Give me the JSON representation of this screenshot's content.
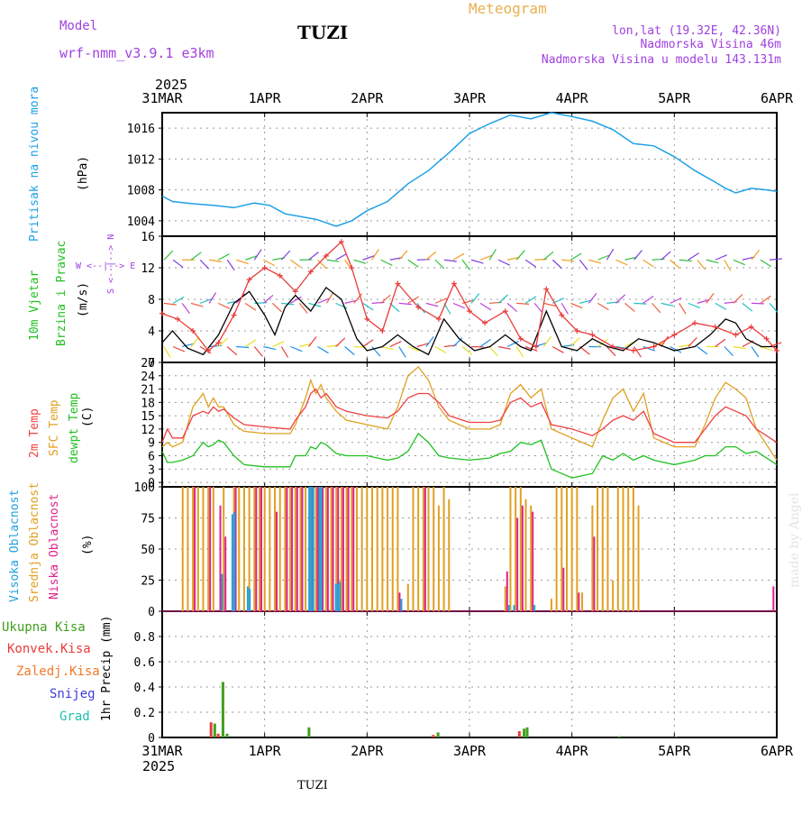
{
  "header": {
    "model_label": "Model",
    "model_name": "wrf-nmm_v3.9.1 e3km",
    "station": "TUZI",
    "meteogram_label": "Meteogram",
    "lonlat": "lon,lat (19.32E, 42.36N)",
    "elevation": "Nadmorska Visina 46m",
    "model_elevation": "Nadmorska Visina u modelu 143.131m",
    "year": "2025",
    "footer_station": "TUZI",
    "credit": "made by Angel"
  },
  "colors": {
    "pressure": "#1ea0e6",
    "wind_speed": "#e83c3c",
    "wind_gust": "#000000",
    "temp2m": "#f04040",
    "sfc_temp": "#e0a020",
    "dewpt": "#20c020",
    "cloud_high": "#20a0e0",
    "cloud_mid": "#e0a020",
    "cloud_low": "#e0208c",
    "precip_total": "#40a020",
    "precip_conv": "#e83c3c",
    "precip_frozen": "#f07828",
    "snow": "#3c3cdc",
    "graupel": "#20c0b0",
    "label_purple": "#a040e0",
    "label_gold": "#e8b050"
  },
  "chart_data": [
    {
      "type": "line",
      "title": "Pritisak na nivou mora",
      "ylabel": "(hPa)",
      "x_ticks": [
        "31MAR",
        "1APR",
        "2APR",
        "3APR",
        "4APR",
        "5APR",
        "6APR"
      ],
      "x_range_days": [
        0,
        6
      ],
      "ylim": [
        1002,
        1018
      ],
      "y_ticks": [
        1004,
        1008,
        1012,
        1016
      ],
      "series": [
        {
          "name": "Pressure",
          "x": [
            0,
            0.1,
            0.3,
            0.5,
            0.7,
            0.9,
            1.05,
            1.2,
            1.5,
            1.7,
            1.85,
            2.0,
            2.2,
            2.4,
            2.6,
            2.8,
            3.0,
            3.2,
            3.4,
            3.6,
            3.8,
            4.0,
            4.2,
            4.4,
            4.6,
            4.8,
            5.0,
            5.2,
            5.4,
            5.5,
            5.6,
            5.75,
            5.9,
            6.0
          ],
          "values": [
            1007.2,
            1006.5,
            1006.2,
            1006.0,
            1005.7,
            1006.3,
            1006.0,
            1004.9,
            1004.2,
            1003.3,
            1004.0,
            1005.3,
            1006.5,
            1008.8,
            1010.5,
            1012.8,
            1015.3,
            1016.6,
            1017.7,
            1017.2,
            1018.0,
            1017.5,
            1016.9,
            1015.8,
            1014.0,
            1013.7,
            1012.3,
            1010.5,
            1009.0,
            1008.2,
            1007.6,
            1008.2,
            1008.0,
            1007.8
          ]
        }
      ]
    },
    {
      "type": "line",
      "title": "10m Vjetar Brzina i Pravac",
      "ylabel": "(m/s)",
      "direction_legend": [
        "N",
        "E",
        "S",
        "W"
      ],
      "ylim": [
        0,
        16
      ],
      "y_ticks": [
        0,
        4,
        8,
        12,
        16
      ],
      "wind_rows": [
        2,
        7.5,
        13
      ],
      "series": [
        {
          "name": "Wind speed",
          "x": [
            0,
            0.15,
            0.3,
            0.45,
            0.55,
            0.7,
            0.85,
            1.0,
            1.15,
            1.3,
            1.45,
            1.6,
            1.75,
            1.85,
            2.0,
            2.15,
            2.3,
            2.5,
            2.7,
            2.85,
            3.0,
            3.15,
            3.35,
            3.5,
            3.65,
            3.75,
            3.9,
            4.05,
            4.2,
            4.4,
            4.6,
            4.8,
            5.0,
            5.2,
            5.4,
            5.6,
            5.75,
            5.9,
            6.0
          ],
          "values": [
            6.2,
            5.5,
            4.0,
            1.5,
            2.5,
            6.0,
            10.5,
            12.0,
            11.0,
            9.0,
            11.5,
            13.5,
            15.3,
            12.0,
            5.5,
            4.0,
            10.0,
            7.0,
            5.5,
            10.0,
            6.5,
            5.0,
            6.5,
            3.0,
            2.0,
            9.3,
            6.0,
            4.0,
            3.5,
            2.0,
            1.5,
            2.0,
            3.5,
            5.0,
            4.5,
            3.5,
            4.5,
            3.0,
            1.5
          ]
        },
        {
          "name": "Wind gust",
          "x": [
            0,
            0.1,
            0.25,
            0.4,
            0.55,
            0.7,
            0.85,
            1.0,
            1.1,
            1.2,
            1.3,
            1.45,
            1.6,
            1.75,
            1.9,
            2.0,
            2.15,
            2.3,
            2.45,
            2.6,
            2.75,
            2.9,
            3.05,
            3.2,
            3.35,
            3.5,
            3.6,
            3.75,
            3.9,
            4.05,
            4.2,
            4.35,
            4.5,
            4.65,
            4.8,
            5.0,
            5.2,
            5.35,
            5.5,
            5.6,
            5.7,
            5.85,
            6.0
          ],
          "values": [
            2.5,
            4.0,
            1.8,
            1.0,
            3.5,
            7.5,
            9.0,
            6.0,
            3.5,
            7.0,
            8.5,
            6.5,
            9.5,
            8.0,
            3.0,
            1.5,
            2.0,
            3.5,
            2.0,
            1.0,
            5.5,
            3.0,
            1.5,
            2.0,
            3.5,
            2.0,
            1.5,
            6.5,
            2.0,
            1.5,
            3.0,
            2.0,
            1.5,
            3.0,
            2.5,
            1.5,
            2.0,
            3.5,
            5.5,
            5.0,
            3.0,
            2.0,
            2.0
          ]
        }
      ]
    },
    {
      "type": "line",
      "title": "2m Temp / SFC Temp / dewpt Temp",
      "ylabel": "(C)",
      "ylim": [
        -1,
        27
      ],
      "y_ticks": [
        0,
        3,
        6,
        9,
        12,
        15,
        18,
        21,
        24,
        27
      ],
      "series": [
        {
          "name": "2m Temp",
          "x": [
            0,
            0.05,
            0.1,
            0.2,
            0.3,
            0.4,
            0.45,
            0.5,
            0.55,
            0.6,
            0.7,
            0.8,
            1.0,
            1.25,
            1.3,
            1.4,
            1.45,
            1.5,
            1.55,
            1.6,
            1.7,
            1.8,
            2.0,
            2.2,
            2.3,
            2.4,
            2.5,
            2.6,
            2.7,
            2.8,
            3.0,
            3.2,
            3.3,
            3.4,
            3.5,
            3.6,
            3.7,
            3.8,
            4.0,
            4.2,
            4.3,
            4.4,
            4.5,
            4.6,
            4.7,
            4.8,
            5.0,
            5.2,
            5.3,
            5.4,
            5.5,
            5.6,
            5.7,
            5.8,
            6.0
          ],
          "values": [
            9,
            12,
            10,
            10,
            15,
            16,
            15.5,
            17,
            16,
            16.5,
            14.5,
            13,
            12.5,
            12,
            14,
            17,
            20,
            21,
            19,
            20,
            17,
            16,
            15,
            14.5,
            16,
            19,
            20,
            20,
            18,
            15,
            13.5,
            13.5,
            14,
            18,
            19,
            17,
            18,
            13,
            12,
            10.5,
            12,
            14,
            15,
            14,
            16,
            11,
            9,
            9,
            12,
            15,
            17,
            16,
            15,
            12,
            9
          ]
        },
        {
          "name": "SFC Temp",
          "x": [
            0,
            0.05,
            0.1,
            0.2,
            0.3,
            0.4,
            0.45,
            0.5,
            0.55,
            0.6,
            0.7,
            0.8,
            1.0,
            1.25,
            1.3,
            1.4,
            1.45,
            1.5,
            1.55,
            1.6,
            1.7,
            1.8,
            2.0,
            2.2,
            2.3,
            2.4,
            2.5,
            2.6,
            2.7,
            2.8,
            3.0,
            3.2,
            3.3,
            3.4,
            3.5,
            3.6,
            3.7,
            3.8,
            4.0,
            4.2,
            4.3,
            4.4,
            4.5,
            4.6,
            4.7,
            4.8,
            5.0,
            5.2,
            5.3,
            5.4,
            5.5,
            5.6,
            5.7,
            5.8,
            6.0
          ],
          "values": [
            8,
            9,
            8,
            9,
            17,
            20,
            17,
            19,
            17,
            17,
            13,
            11.5,
            11,
            11,
            13,
            19,
            23,
            20,
            22,
            19,
            16,
            14,
            13,
            12,
            17,
            24,
            26,
            23,
            17,
            14,
            12,
            12,
            13,
            20,
            22,
            19,
            21,
            12,
            10,
            8,
            14,
            19,
            21,
            16,
            20,
            10,
            8,
            8,
            13,
            19,
            22.5,
            21,
            19,
            12,
            5
          ]
        },
        {
          "name": "dewpt Temp",
          "x": [
            0,
            0.05,
            0.1,
            0.2,
            0.3,
            0.4,
            0.45,
            0.5,
            0.55,
            0.6,
            0.7,
            0.8,
            1.0,
            1.25,
            1.3,
            1.4,
            1.45,
            1.5,
            1.55,
            1.6,
            1.7,
            1.8,
            2.0,
            2.2,
            2.3,
            2.4,
            2.5,
            2.6,
            2.7,
            2.8,
            3.0,
            3.2,
            3.3,
            3.4,
            3.5,
            3.6,
            3.7,
            3.8,
            4.0,
            4.2,
            4.3,
            4.4,
            4.5,
            4.6,
            4.7,
            4.8,
            5.0,
            5.2,
            5.3,
            5.4,
            5.5,
            5.6,
            5.7,
            5.8,
            6.0
          ],
          "values": [
            7,
            4.5,
            4.5,
            5,
            6,
            9,
            8,
            8.5,
            9.5,
            9,
            6,
            4,
            3.5,
            3.5,
            6,
            6,
            8,
            7.5,
            9,
            8.5,
            6.5,
            6,
            6,
            5,
            5.5,
            7,
            11,
            9,
            6,
            5.5,
            5,
            5.5,
            6.5,
            7,
            9,
            8.5,
            9.5,
            3,
            1,
            2,
            6,
            5,
            6.5,
            5,
            6,
            5,
            4,
            5,
            6,
            6,
            8,
            8,
            6.5,
            7,
            4
          ]
        }
      ]
    },
    {
      "type": "bar",
      "title": "Visoka / Srednja / Niska Oblacnost",
      "ylabel": "(%)",
      "ylim": [
        0,
        100
      ],
      "y_ticks": [
        0,
        25,
        50,
        75,
        100
      ],
      "series": [
        {
          "name": "Srednja Oblacnost",
          "x": [
            0.2,
            0.25,
            0.3,
            0.35,
            0.4,
            0.45,
            0.5,
            0.6,
            0.7,
            0.75,
            0.8,
            0.85,
            0.9,
            0.95,
            1.0,
            1.05,
            1.1,
            1.15,
            1.2,
            1.25,
            1.3,
            1.35,
            1.4,
            1.45,
            1.5,
            1.55,
            1.6,
            1.65,
            1.7,
            1.75,
            1.8,
            1.85,
            1.9,
            1.95,
            2.0,
            2.05,
            2.1,
            2.15,
            2.2,
            2.25,
            2.3,
            2.4,
            2.45,
            2.5,
            2.55,
            2.6,
            2.65,
            2.7,
            2.75,
            2.8,
            3.35,
            3.4,
            3.45,
            3.5,
            3.55,
            3.6,
            3.8,
            3.85,
            3.9,
            3.95,
            4.0,
            4.05,
            4.1,
            4.2,
            4.25,
            4.3,
            4.35,
            4.4,
            4.45,
            4.5,
            4.55,
            4.6,
            4.65
          ],
          "values": [
            100,
            100,
            100,
            100,
            100,
            100,
            100,
            100,
            100,
            100,
            100,
            100,
            100,
            100,
            100,
            100,
            100,
            100,
            100,
            100,
            100,
            100,
            100,
            100,
            100,
            100,
            100,
            100,
            100,
            100,
            100,
            100,
            100,
            100,
            100,
            100,
            100,
            100,
            100,
            100,
            100,
            22,
            100,
            100,
            100,
            100,
            100,
            85,
            100,
            90,
            20,
            100,
            100,
            100,
            90,
            85,
            10,
            100,
            100,
            100,
            100,
            100,
            15,
            85,
            100,
            100,
            100,
            25,
            100,
            100,
            100,
            100,
            85
          ]
        },
        {
          "name": "Niska Oblacnost",
          "x": [
            0.3,
            0.45,
            0.55,
            0.6,
            0.7,
            0.9,
            0.95,
            1.1,
            1.2,
            1.25,
            1.3,
            1.35,
            1.45,
            1.5,
            1.55,
            1.6,
            1.65,
            1.7,
            1.75,
            1.8,
            1.85,
            2.3,
            2.55,
            3.35,
            3.45,
            3.5,
            3.6,
            3.9,
            4.05,
            4.2,
            5.95
          ],
          "values": [
            100,
            100,
            85,
            60,
            100,
            100,
            100,
            80,
            100,
            100,
            100,
            100,
            100,
            100,
            100,
            100,
            100,
            100,
            100,
            100,
            100,
            15,
            100,
            32,
            75,
            85,
            80,
            35,
            15,
            60,
            20
          ]
        },
        {
          "name": "Visoka Oblacnost",
          "x": [
            0.55,
            0.65,
            0.67,
            0.8,
            0.82,
            1.4,
            1.42,
            1.44,
            1.5,
            1.52,
            1.66,
            1.68,
            1.7,
            2.3,
            3.35,
            3.4,
            3.6
          ],
          "values": [
            30,
            78,
            80,
            20,
            18,
            100,
            100,
            100,
            100,
            100,
            22,
            22,
            24,
            10,
            5,
            5,
            5
          ]
        }
      ]
    },
    {
      "type": "bar",
      "title": "1hr Precip",
      "ylabel": "1hr Precip (mm)",
      "ylim": [
        0,
        1
      ],
      "y_ticks": [
        0,
        0.2,
        0.4,
        0.6,
        0.8
      ],
      "legend": [
        "Ukupna Kisa",
        "Konvek.Kisa",
        "Zaledj.Kisa",
        "Snijeg",
        "Grad"
      ],
      "series": [
        {
          "name": "Ukupna Kisa",
          "x": [
            0.5,
            0.58,
            0.62,
            1.42,
            2.68,
            3.52,
            3.55,
            4.45,
            5.0
          ],
          "values": [
            0.11,
            0.44,
            0.03,
            0.08,
            0.04,
            0.07,
            0.08,
            0.01,
            0.005
          ]
        },
        {
          "name": "Konvek.Kisa",
          "x": [
            0.49,
            0.56,
            2.66,
            3.5
          ],
          "values": [
            0.12,
            0.03,
            0.02,
            0.05
          ]
        }
      ]
    }
  ],
  "panels": {
    "pressure": {
      "title": "Pritisak na nivou mora",
      "unit": "(hPa)"
    },
    "wind": {
      "title1": "10m Vjetar",
      "title2": "Brzina i Pravac",
      "unit": "(m/s)",
      "dir": "W <--|--> E",
      "dir2": "S <--|--> N"
    },
    "temp": {
      "t1": "2m Temp",
      "t2": "SFC Temp",
      "t3": "dewpt Temp",
      "unit": "(C)"
    },
    "cloud": {
      "c1": "Visoka Oblacnost",
      "c2": "Srednja Oblacnost",
      "c3": "Niska Oblacnost",
      "unit": "(%)"
    },
    "precip": {
      "unit": "1hr Precip (mm)",
      "l1": "Ukupna Kisa",
      "l2": "Konvek.Kisa",
      "l3": "Zaledj.Kisa",
      "l4": "Snijeg",
      "l5": "Grad"
    }
  }
}
